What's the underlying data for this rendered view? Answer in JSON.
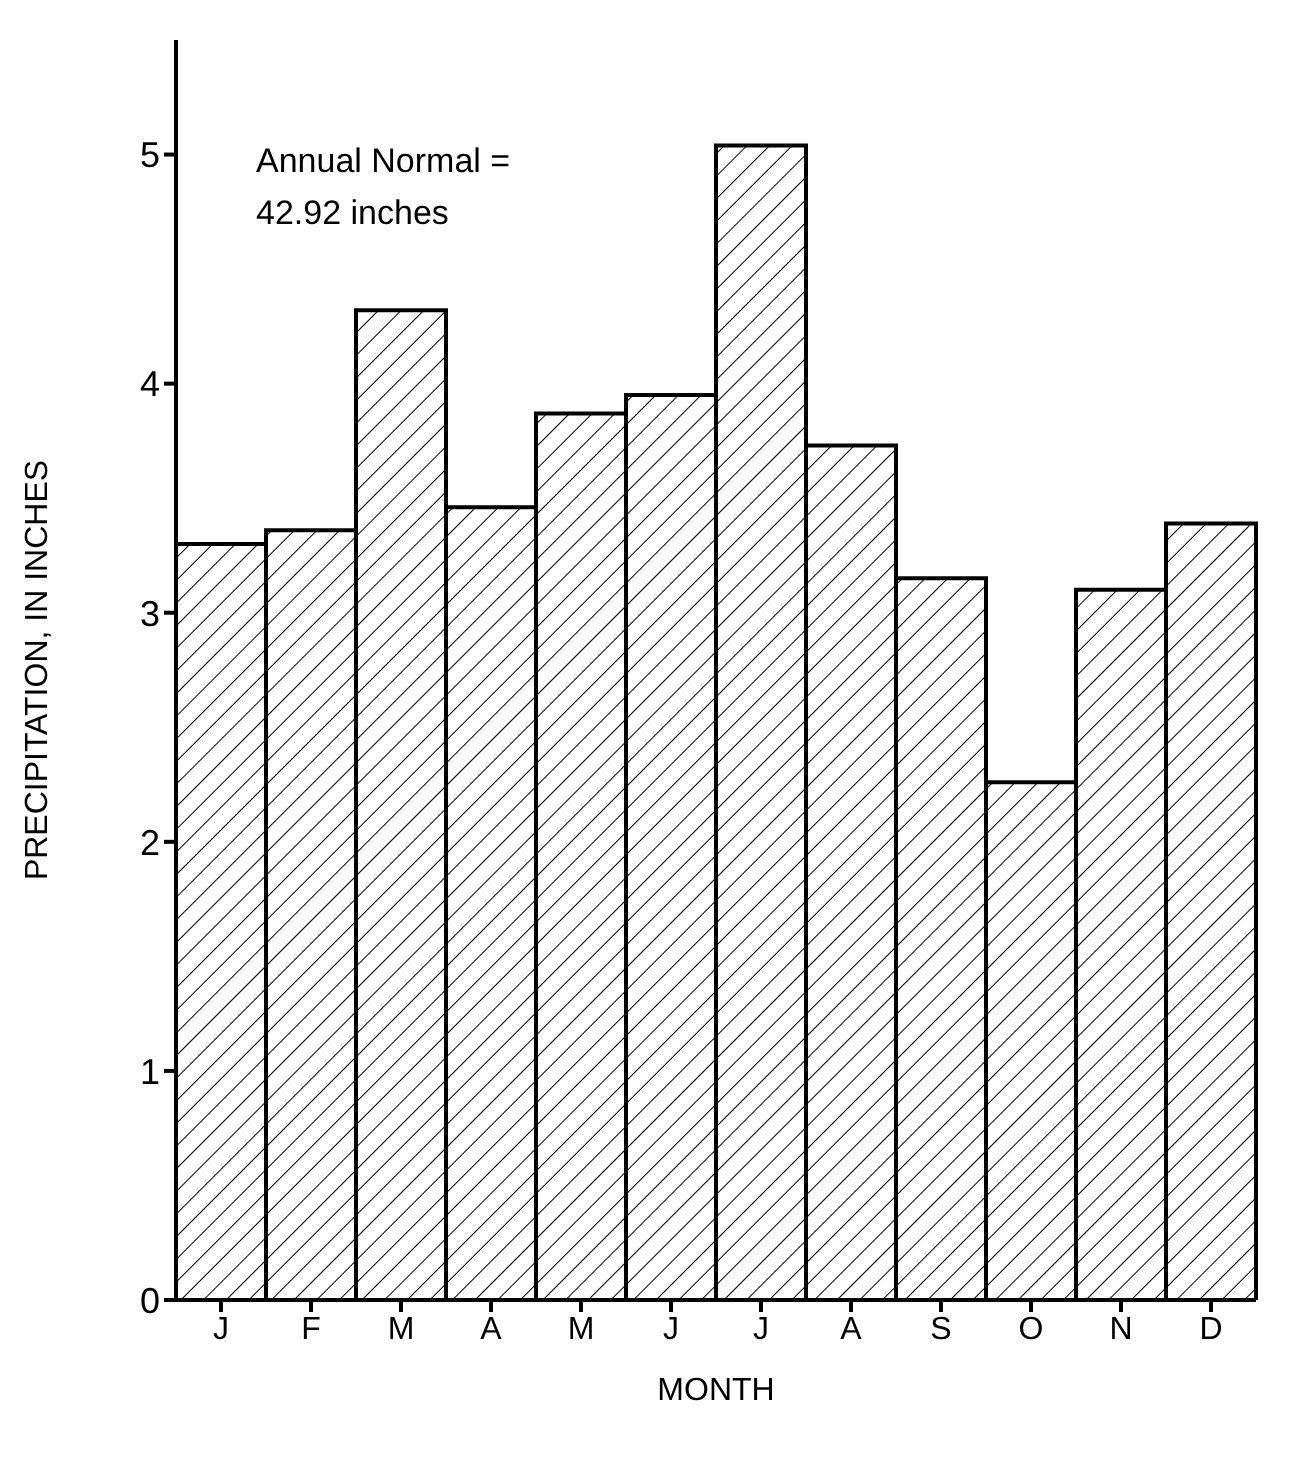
{
  "chart_data": {
    "type": "bar",
    "xlabel": "MONTH",
    "ylabel": "PRECIPITATION, IN INCHES",
    "categories": [
      "J",
      "F",
      "M",
      "A",
      "M",
      "J",
      "J",
      "A",
      "S",
      "O",
      "N",
      "D"
    ],
    "values": [
      3.3,
      3.36,
      4.32,
      3.46,
      3.87,
      3.95,
      5.04,
      3.73,
      3.15,
      2.26,
      3.1,
      3.39
    ],
    "color": "#000000",
    "ylim": [
      0,
      5.5
    ],
    "yticks": [
      0,
      1,
      2,
      3,
      4,
      5
    ],
    "grid": false,
    "annotations": [
      "Annual Normal = 42.92 inches"
    ]
  }
}
